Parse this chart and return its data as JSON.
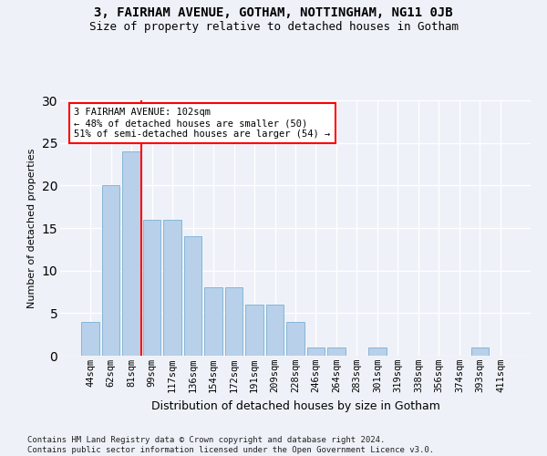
{
  "title": "3, FAIRHAM AVENUE, GOTHAM, NOTTINGHAM, NG11 0JB",
  "subtitle": "Size of property relative to detached houses in Gotham",
  "xlabel": "Distribution of detached houses by size in Gotham",
  "ylabel": "Number of detached properties",
  "categories": [
    "44sqm",
    "62sqm",
    "81sqm",
    "99sqm",
    "117sqm",
    "136sqm",
    "154sqm",
    "172sqm",
    "191sqm",
    "209sqm",
    "228sqm",
    "246sqm",
    "264sqm",
    "283sqm",
    "301sqm",
    "319sqm",
    "338sqm",
    "356sqm",
    "374sqm",
    "393sqm",
    "411sqm"
  ],
  "values": [
    4,
    20,
    24,
    16,
    16,
    14,
    8,
    8,
    6,
    6,
    4,
    1,
    1,
    0,
    1,
    0,
    0,
    0,
    0,
    1,
    0
  ],
  "bar_color": "#b8d0ea",
  "bar_edge_color": "#7aafd4",
  "vline_color": "red",
  "vline_x": 2.5,
  "annotation_text": "3 FAIRHAM AVENUE: 102sqm\n← 48% of detached houses are smaller (50)\n51% of semi-detached houses are larger (54) →",
  "annotation_box_color": "white",
  "annotation_box_edgecolor": "red",
  "ylim": [
    0,
    30
  ],
  "yticks": [
    0,
    5,
    10,
    15,
    20,
    25,
    30
  ],
  "footer": "Contains HM Land Registry data © Crown copyright and database right 2024.\nContains public sector information licensed under the Open Government Licence v3.0.",
  "bg_color": "#eef2f8",
  "plot_bg_color": "#eef2f8",
  "title_fontsize": 10,
  "subtitle_fontsize": 9,
  "ylabel_fontsize": 8,
  "xlabel_fontsize": 9,
  "tick_fontsize": 7.5,
  "footer_fontsize": 6.5
}
